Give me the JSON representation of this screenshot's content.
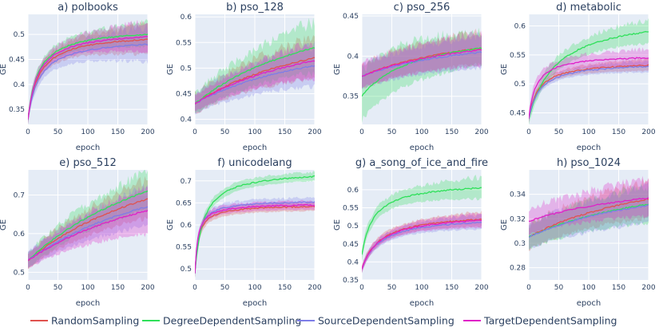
{
  "colors": {
    "RandomSampling": "#e0524e",
    "DegreeDependentSampling": "#2fe05a",
    "SourceDependentSampling": "#7d7de8",
    "TargetDependentSampling": "#e020c8",
    "plot_bg": "#e5ecf6",
    "grid": "#ffffff"
  },
  "legend": [
    "RandomSampling",
    "DegreeDependentSampling",
    "SourceDependentSampling",
    "TargetDependentSampling"
  ],
  "chart_data": [
    {
      "type": "line",
      "title": "a) polbooks",
      "xlabel": "epoch",
      "ylabel": "GE",
      "xlim": [
        0,
        200
      ],
      "ylim": [
        0.32,
        0.54
      ],
      "xticks": [
        0,
        50,
        100,
        150,
        200
      ],
      "yticks": [
        0.35,
        0.4,
        0.45,
        0.5
      ],
      "series": [
        {
          "name": "RandomSampling",
          "start": 0.33,
          "end": 0.49,
          "k": 18,
          "band_start": 0.01,
          "band_end": 0.03
        },
        {
          "name": "DegreeDependentSampling",
          "start": 0.33,
          "end": 0.5,
          "k": 17,
          "band_start": 0.01,
          "band_end": 0.025
        },
        {
          "name": "SourceDependentSampling",
          "start": 0.33,
          "end": 0.48,
          "k": 19,
          "band_start": 0.01,
          "band_end": 0.035
        },
        {
          "name": "TargetDependentSampling",
          "start": 0.33,
          "end": 0.495,
          "k": 17,
          "band_start": 0.01,
          "band_end": 0.03
        }
      ]
    },
    {
      "type": "line",
      "title": "b) pso_128",
      "xlabel": "epoch",
      "ylabel": "GE",
      "xlim": [
        0,
        200
      ],
      "ylim": [
        0.39,
        0.605
      ],
      "xticks": [
        0,
        50,
        100,
        150,
        200
      ],
      "yticks": [
        0.4,
        0.45,
        0.5,
        0.55,
        0.6
      ],
      "series": [
        {
          "name": "RandomSampling",
          "start": 0.43,
          "end": 0.52,
          "k": 250,
          "band_start": 0.02,
          "band_end": 0.04
        },
        {
          "name": "DegreeDependentSampling",
          "start": 0.43,
          "end": 0.54,
          "k": 250,
          "band_start": 0.02,
          "band_end": 0.05
        },
        {
          "name": "SourceDependentSampling",
          "start": 0.43,
          "end": 0.505,
          "k": 250,
          "band_start": 0.02,
          "band_end": 0.04
        },
        {
          "name": "TargetDependentSampling",
          "start": 0.43,
          "end": 0.515,
          "k": 250,
          "band_start": 0.015,
          "band_end": 0.035
        }
      ]
    },
    {
      "type": "line",
      "title": "c) pso_256",
      "xlabel": "epoch",
      "ylabel": "GE",
      "xlim": [
        0,
        200
      ],
      "ylim": [
        0.315,
        0.452
      ],
      "xticks": [
        0,
        50,
        100,
        150,
        200
      ],
      "yticks": [
        0.35,
        0.4,
        0.45
      ],
      "series": [
        {
          "name": "RandomSampling",
          "start": 0.375,
          "end": 0.41,
          "k": 220,
          "band_start": 0.015,
          "band_end": 0.02
        },
        {
          "name": "DegreeDependentSampling",
          "start": 0.35,
          "end": 0.41,
          "k": 90,
          "band_start": 0.03,
          "band_end": 0.02
        },
        {
          "name": "SourceDependentSampling",
          "start": 0.375,
          "end": 0.405,
          "k": 220,
          "band_start": 0.015,
          "band_end": 0.02
        },
        {
          "name": "TargetDependentSampling",
          "start": 0.375,
          "end": 0.408,
          "k": 220,
          "band_start": 0.015,
          "band_end": 0.02
        }
      ]
    },
    {
      "type": "line",
      "title": "d) metabolic",
      "xlabel": "epoch",
      "ylabel": "GE",
      "xlim": [
        0,
        200
      ],
      "ylim": [
        0.43,
        0.62
      ],
      "xticks": [
        0,
        50,
        100,
        150,
        200
      ],
      "yticks": [
        0.45,
        0.5,
        0.55,
        0.6
      ],
      "series": [
        {
          "name": "RandomSampling",
          "start": 0.44,
          "end": 0.532,
          "k": 16,
          "band_start": 0.005,
          "band_end": 0.01
        },
        {
          "name": "DegreeDependentSampling",
          "start": 0.44,
          "end": 0.59,
          "k": 45,
          "band_start": 0.01,
          "band_end": 0.02
        },
        {
          "name": "SourceDependentSampling",
          "start": 0.44,
          "end": 0.53,
          "k": 18,
          "band_start": 0.005,
          "band_end": 0.01
        },
        {
          "name": "TargetDependentSampling",
          "start": 0.44,
          "end": 0.545,
          "k": 12,
          "band_start": 0.01,
          "band_end": 0.015
        }
      ]
    },
    {
      "type": "line",
      "title": "e) pso_512",
      "xlabel": "epoch",
      "ylabel": "GE",
      "xlim": [
        0,
        200
      ],
      "ylim": [
        0.48,
        0.765
      ],
      "xticks": [
        0,
        50,
        100,
        150,
        200
      ],
      "yticks": [
        0.5,
        0.6,
        0.7
      ],
      "series": [
        {
          "name": "RandomSampling",
          "start": 0.53,
          "end": 0.69,
          "k": 300,
          "band_start": 0.02,
          "band_end": 0.05
        },
        {
          "name": "DegreeDependentSampling",
          "start": 0.53,
          "end": 0.71,
          "k": 300,
          "band_start": 0.02,
          "band_end": 0.05
        },
        {
          "name": "SourceDependentSampling",
          "start": 0.53,
          "end": 0.67,
          "k": 300,
          "band_start": 0.02,
          "band_end": 0.05
        },
        {
          "name": "TargetDependentSampling",
          "start": 0.53,
          "end": 0.66,
          "k": 300,
          "band_start": 0.02,
          "band_end": 0.06
        }
      ]
    },
    {
      "type": "line",
      "title": "f) unicodelang",
      "xlabel": "epoch",
      "ylabel": "GE",
      "xlim": [
        0,
        200
      ],
      "ylim": [
        0.475,
        0.725
      ],
      "xticks": [
        0,
        50,
        100,
        150,
        200
      ],
      "yticks": [
        0.5,
        0.55,
        0.6,
        0.65,
        0.7
      ],
      "series": [
        {
          "name": "RandomSampling",
          "start": 0.49,
          "end": 0.642,
          "k": 6,
          "band_start": 0.01,
          "band_end": 0.01
        },
        {
          "name": "DegreeDependentSampling",
          "start": 0.49,
          "end": 0.71,
          "k": 14,
          "band_start": 0.01,
          "band_end": 0.01
        },
        {
          "name": "SourceDependentSampling",
          "start": 0.49,
          "end": 0.652,
          "k": 6,
          "band_start": 0.01,
          "band_end": 0.01
        },
        {
          "name": "TargetDependentSampling",
          "start": 0.49,
          "end": 0.645,
          "k": 5,
          "band_start": 0.01,
          "band_end": 0.01
        }
      ]
    },
    {
      "type": "line",
      "title": "g) a_song_of_ice_and_fire",
      "xlabel": "epoch",
      "ylabel": "GE",
      "xlim": [
        0,
        200
      ],
      "ylim": [
        0.35,
        0.655
      ],
      "xticks": [
        0,
        50,
        100,
        150,
        200
      ],
      "yticks": [
        0.35,
        0.4,
        0.45,
        0.5,
        0.55,
        0.6
      ],
      "series": [
        {
          "name": "RandomSampling",
          "start": 0.38,
          "end": 0.518,
          "k": 30,
          "band_start": 0.01,
          "band_end": 0.02
        },
        {
          "name": "DegreeDependentSampling",
          "start": 0.42,
          "end": 0.605,
          "k": 20,
          "band_start": 0.015,
          "band_end": 0.03
        },
        {
          "name": "SourceDependentSampling",
          "start": 0.38,
          "end": 0.51,
          "k": 30,
          "band_start": 0.01,
          "band_end": 0.02
        },
        {
          "name": "TargetDependentSampling",
          "start": 0.38,
          "end": 0.515,
          "k": 30,
          "band_start": 0.01,
          "band_end": 0.02
        }
      ]
    },
    {
      "type": "line",
      "title": "h) pso_1024",
      "xlabel": "epoch",
      "ylabel": "GE",
      "xlim": [
        0,
        200
      ],
      "ylim": [
        0.27,
        0.36
      ],
      "xticks": [
        0,
        50,
        100,
        150,
        200
      ],
      "yticks": [
        0.28,
        0.3,
        0.32,
        0.34
      ],
      "series": [
        {
          "name": "RandomSampling",
          "start": 0.305,
          "end": 0.336,
          "k": 250,
          "band_start": 0.01,
          "band_end": 0.015
        },
        {
          "name": "DegreeDependentSampling",
          "start": 0.305,
          "end": 0.332,
          "k": 250,
          "band_start": 0.01,
          "band_end": 0.015
        },
        {
          "name": "SourceDependentSampling",
          "start": 0.305,
          "end": 0.331,
          "k": 250,
          "band_start": 0.01,
          "band_end": 0.015
        },
        {
          "name": "TargetDependentSampling",
          "start": 0.318,
          "end": 0.337,
          "k": 250,
          "band_start": 0.01,
          "band_end": 0.015
        }
      ]
    }
  ]
}
